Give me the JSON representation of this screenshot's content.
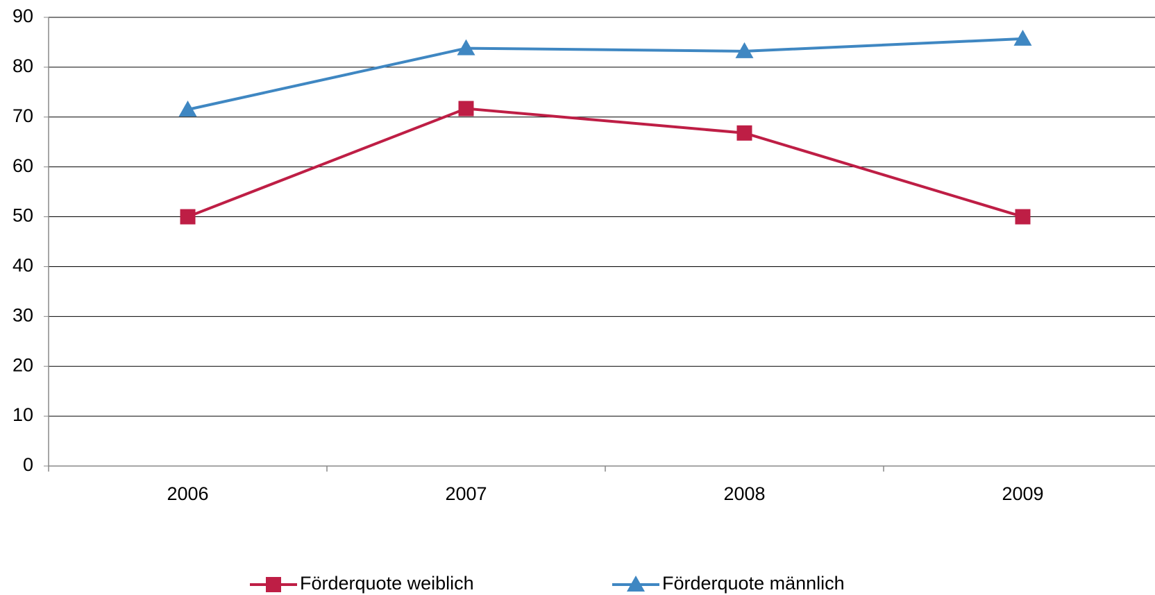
{
  "chart_data": {
    "type": "line",
    "categories": [
      "2006",
      "2007",
      "2008",
      "2009"
    ],
    "series": [
      {
        "name": "Förderquote weiblich",
        "color": "#be1e45",
        "marker": "square",
        "values": [
          50,
          71.7,
          66.8,
          50
        ]
      },
      {
        "name": "Förderquote männlich",
        "color": "#3f87c2",
        "marker": "triangle",
        "values": [
          71.5,
          83.8,
          83.2,
          85.7
        ]
      }
    ],
    "ylim": [
      0,
      90
    ],
    "yticks": [
      0,
      10,
      20,
      30,
      40,
      50,
      60,
      70,
      80,
      90
    ],
    "grid": true,
    "legend": "bottom"
  }
}
